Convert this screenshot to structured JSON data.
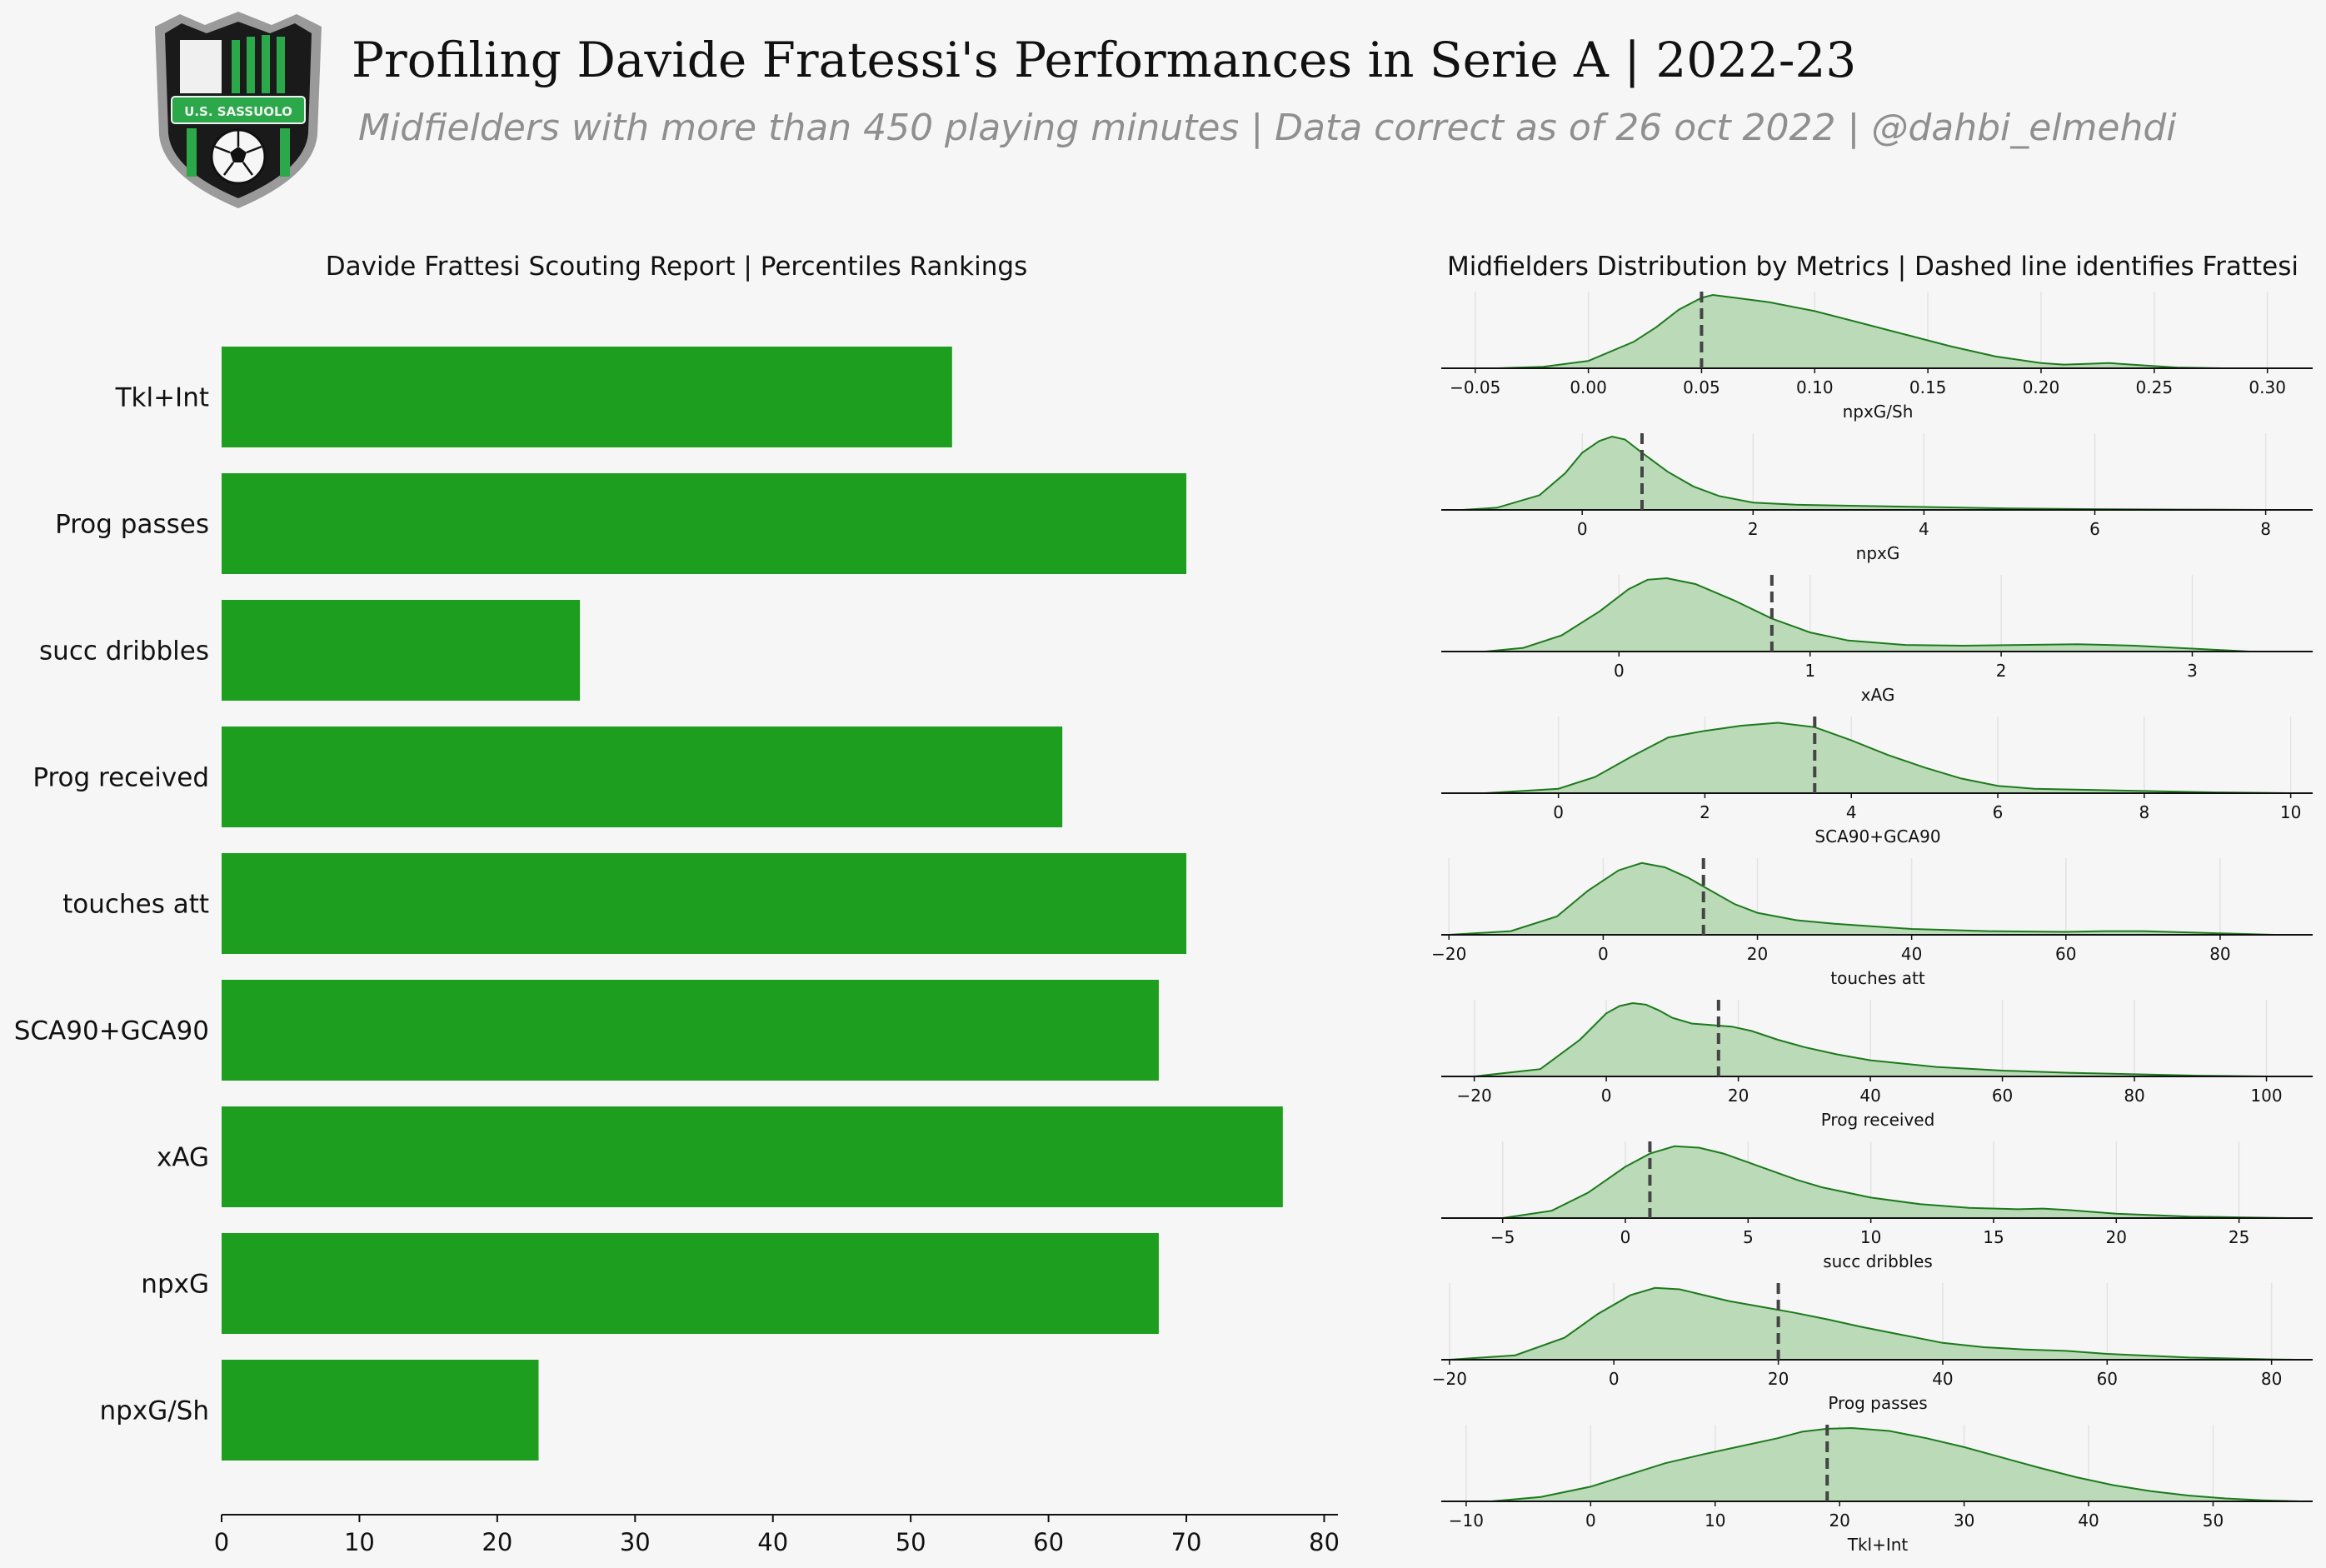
{
  "header": {
    "title": "Profiling Davide Fratessi's Performances in Serie A | 2022-23",
    "subtitle": "Midfielders with more than 450 playing minutes | Data correct as of 26 oct 2022 | @dahbi_elmehdi",
    "logo_text": "U.S. SASSUOLO"
  },
  "colors": {
    "background": "#f6f6f6",
    "bar": "#1e9e1e",
    "kde_fill": "#bbdab8",
    "kde_line": "#1c7a1c",
    "marker": "#444444",
    "logo_green": "#2aa84a",
    "logo_black": "#1a1a1a"
  },
  "chart_data": [
    {
      "type": "bar",
      "orientation": "horizontal",
      "title": "Davide Frattesi Scouting Report | Percentiles Rankings",
      "categories": [
        "Tkl+Int",
        "Prog passes",
        "succ dribbles",
        "Prog received",
        "touches att",
        "SCA90+GCA90",
        "xAG",
        "npxG",
        "npxG/Sh"
      ],
      "values": [
        53,
        70,
        26,
        61,
        70,
        68,
        77,
        68,
        23
      ],
      "xlim": [
        0,
        81
      ],
      "xticks": [
        0,
        10,
        20,
        30,
        40,
        50,
        60,
        70,
        80
      ],
      "grid": false
    },
    {
      "type": "area",
      "title": "Midfielders Distribution by Metrics | Dashed line identifies Frattesi",
      "panels": [
        {
          "metric": "npxG/Sh",
          "marker": 0.05,
          "xlim": [
            -0.065,
            0.32
          ],
          "xticks": [
            -0.05,
            0.0,
            0.05,
            0.1,
            0.15,
            0.2,
            0.25,
            0.3
          ],
          "tick_labels": [
            "−0.05",
            "0.00",
            "0.05",
            "0.10",
            "0.15",
            "0.20",
            "0.25",
            "0.30"
          ],
          "curve_x": [
            -0.04,
            -0.02,
            0.0,
            0.02,
            0.03,
            0.04,
            0.05,
            0.055,
            0.06,
            0.07,
            0.08,
            0.1,
            0.12,
            0.14,
            0.16,
            0.18,
            0.2,
            0.21,
            0.22,
            0.23,
            0.24,
            0.25,
            0.26,
            0.28
          ],
          "curve_y": [
            0.0,
            0.02,
            0.1,
            0.36,
            0.56,
            0.8,
            0.96,
            1.0,
            0.98,
            0.94,
            0.9,
            0.78,
            0.62,
            0.46,
            0.3,
            0.16,
            0.07,
            0.05,
            0.06,
            0.07,
            0.05,
            0.03,
            0.01,
            0.0
          ]
        },
        {
          "metric": "npxG",
          "marker": 0.7,
          "xlim": [
            -1.65,
            8.55
          ],
          "xticks": [
            0,
            2,
            4,
            6,
            8
          ],
          "tick_labels": [
            "0",
            "2",
            "4",
            "6",
            "8"
          ],
          "curve_x": [
            -1.4,
            -1.0,
            -0.5,
            -0.2,
            0.0,
            0.2,
            0.35,
            0.5,
            0.7,
            1.0,
            1.3,
            1.6,
            2.0,
            2.5,
            3.0,
            3.5,
            4.0,
            5.0,
            6.0,
            7.0,
            8.0
          ],
          "curve_y": [
            0.0,
            0.03,
            0.2,
            0.5,
            0.78,
            0.94,
            1.0,
            0.96,
            0.78,
            0.52,
            0.32,
            0.19,
            0.1,
            0.07,
            0.06,
            0.05,
            0.04,
            0.02,
            0.01,
            0.005,
            0.0
          ]
        },
        {
          "metric": "xAG",
          "marker": 0.8,
          "xlim": [
            -0.93,
            3.63
          ],
          "xticks": [
            0,
            1,
            2,
            3
          ],
          "tick_labels": [
            "0",
            "1",
            "2",
            "3"
          ],
          "curve_x": [
            -0.7,
            -0.5,
            -0.3,
            -0.1,
            0.05,
            0.15,
            0.25,
            0.4,
            0.6,
            0.8,
            1.0,
            1.2,
            1.5,
            1.8,
            2.1,
            2.4,
            2.7,
            3.0,
            3.3
          ],
          "curve_y": [
            0.0,
            0.05,
            0.22,
            0.55,
            0.85,
            0.98,
            1.0,
            0.92,
            0.7,
            0.45,
            0.26,
            0.15,
            0.09,
            0.08,
            0.09,
            0.1,
            0.08,
            0.04,
            0.0
          ]
        },
        {
          "metric": "SCA90+GCA90",
          "marker": 3.5,
          "xlim": [
            -1.6,
            10.3
          ],
          "xticks": [
            0,
            2,
            4,
            6,
            8,
            10
          ],
          "tick_labels": [
            "0",
            "2",
            "4",
            "6",
            "8",
            "10"
          ],
          "curve_x": [
            -1.0,
            0.0,
            0.5,
            1.0,
            1.5,
            2.0,
            2.5,
            3.0,
            3.5,
            4.0,
            4.5,
            5.0,
            5.5,
            6.0,
            6.5,
            7.0,
            8.0,
            9.0,
            10.0
          ],
          "curve_y": [
            0.0,
            0.06,
            0.22,
            0.5,
            0.76,
            0.85,
            0.92,
            0.96,
            0.9,
            0.72,
            0.52,
            0.35,
            0.2,
            0.1,
            0.06,
            0.05,
            0.03,
            0.01,
            0.0
          ]
        },
        {
          "metric": "touches att",
          "marker": 13,
          "xlim": [
            -21,
            92
          ],
          "xticks": [
            -20,
            0,
            20,
            40,
            60,
            80
          ],
          "tick_labels": [
            "−20",
            "0",
            "20",
            "40",
            "60",
            "80"
          ],
          "curve_x": [
            -20,
            -12,
            -6,
            -2,
            2,
            5,
            8,
            11,
            14,
            17,
            20,
            25,
            30,
            40,
            50,
            60,
            65,
            70,
            80,
            87
          ],
          "curve_y": [
            0.0,
            0.05,
            0.25,
            0.6,
            0.88,
            0.98,
            0.92,
            0.78,
            0.6,
            0.42,
            0.3,
            0.2,
            0.15,
            0.08,
            0.05,
            0.04,
            0.05,
            0.05,
            0.02,
            0.0
          ]
        },
        {
          "metric": "Prog received",
          "marker": 17,
          "xlim": [
            -25,
            107
          ],
          "xticks": [
            -20,
            0,
            20,
            40,
            60,
            80,
            100
          ],
          "tick_labels": [
            "−20",
            "0",
            "20",
            "40",
            "60",
            "80",
            "100"
          ],
          "curve_x": [
            -20,
            -10,
            -4,
            0,
            2,
            4,
            6,
            8,
            10,
            13,
            16,
            19,
            22,
            26,
            30,
            35,
            40,
            50,
            60,
            70,
            80,
            90,
            100
          ],
          "curve_y": [
            0.0,
            0.1,
            0.5,
            0.86,
            0.96,
            1.0,
            0.98,
            0.9,
            0.8,
            0.72,
            0.7,
            0.68,
            0.62,
            0.5,
            0.4,
            0.3,
            0.22,
            0.13,
            0.08,
            0.05,
            0.03,
            0.01,
            0.0
          ]
        },
        {
          "metric": "succ dribbles",
          "marker": 1,
          "xlim": [
            -7.5,
            28
          ],
          "xticks": [
            -5,
            0,
            5,
            10,
            15,
            20,
            25
          ],
          "tick_labels": [
            "−5",
            "0",
            "5",
            "10",
            "15",
            "20",
            "25"
          ],
          "curve_x": [
            -5,
            -3,
            -1.5,
            0,
            1,
            2,
            3,
            4,
            5,
            6,
            7,
            8,
            10,
            12,
            14,
            16,
            17,
            18,
            20,
            23,
            25,
            27
          ],
          "curve_y": [
            0.0,
            0.1,
            0.35,
            0.7,
            0.88,
            0.98,
            0.96,
            0.88,
            0.76,
            0.64,
            0.52,
            0.42,
            0.28,
            0.19,
            0.14,
            0.12,
            0.13,
            0.11,
            0.06,
            0.02,
            0.01,
            0.0
          ]
        },
        {
          "metric": "Prog passes",
          "marker": 20,
          "xlim": [
            -21,
            85
          ],
          "xticks": [
            -20,
            0,
            20,
            40,
            60,
            80
          ],
          "tick_labels": [
            "−20",
            "0",
            "20",
            "40",
            "60",
            "80"
          ],
          "curve_x": [
            -20,
            -12,
            -6,
            -2,
            2,
            5,
            8,
            11,
            14,
            18,
            22,
            26,
            30,
            35,
            40,
            45,
            50,
            55,
            60,
            70,
            80,
            83
          ],
          "curve_y": [
            0.0,
            0.06,
            0.3,
            0.62,
            0.88,
            0.98,
            0.96,
            0.88,
            0.8,
            0.72,
            0.64,
            0.55,
            0.45,
            0.34,
            0.23,
            0.17,
            0.14,
            0.12,
            0.08,
            0.03,
            0.005,
            0.0
          ]
        },
        {
          "metric": "Tkl+Int",
          "marker": 19,
          "xlim": [
            -12,
            58
          ],
          "xticks": [
            -10,
            0,
            10,
            20,
            30,
            40,
            50
          ],
          "tick_labels": [
            "−10",
            "0",
            "10",
            "20",
            "30",
            "40",
            "50"
          ],
          "curve_x": [
            -8,
            -4,
            0,
            3,
            6,
            9,
            12,
            15,
            17,
            19,
            21,
            24,
            27,
            30,
            33,
            36,
            39,
            42,
            45,
            48,
            51,
            54,
            57
          ],
          "curve_y": [
            0.0,
            0.06,
            0.2,
            0.36,
            0.52,
            0.64,
            0.75,
            0.86,
            0.95,
            0.99,
            1.0,
            0.96,
            0.86,
            0.74,
            0.6,
            0.46,
            0.33,
            0.22,
            0.14,
            0.08,
            0.04,
            0.015,
            0.0
          ]
        }
      ]
    }
  ]
}
